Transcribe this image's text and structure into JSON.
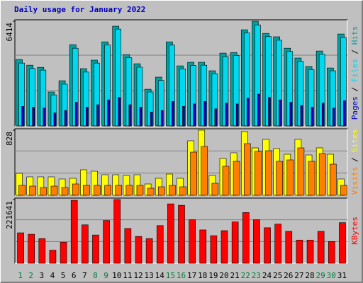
{
  "chart_data": [
    {
      "type": "bar",
      "title": "Daily usage for January 2022",
      "series": [
        {
          "name": "Hits",
          "color": "#00a0a0",
          "values": [
            4070,
            3720,
            3590,
            2080,
            2770,
            4980,
            3510,
            4030,
            5150,
            6110,
            4370,
            3810,
            2250,
            2990,
            5150,
            3680,
            3900,
            3900,
            3380,
            4460,
            4500,
            5890,
            6414,
            5670,
            5460,
            4760,
            4160,
            3640,
            4590,
            3550,
            5630
          ]
        },
        {
          "name": "Files",
          "color": "#00d8f0",
          "values": [
            3850,
            3520,
            3420,
            1900,
            2560,
            4760,
            3300,
            3850,
            4960,
            5930,
            4180,
            3600,
            2080,
            2790,
            4950,
            3500,
            3700,
            3720,
            3200,
            4250,
            4320,
            5700,
            6190,
            5480,
            5250,
            4560,
            3950,
            3450,
            4400,
            3380,
            5420
          ]
        },
        {
          "name": "Pages",
          "color": "#0000c0",
          "values": [
            1200,
            1150,
            1100,
            800,
            950,
            1450,
            1150,
            1300,
            1600,
            1750,
            1300,
            1150,
            850,
            950,
            1500,
            1200,
            1350,
            1500,
            1050,
            1400,
            1350,
            1700,
            1950,
            1750,
            1600,
            1450,
            1250,
            1150,
            1400,
            1100,
            1550
          ]
        }
      ],
      "ylim": [
        0,
        6414
      ],
      "yticks": [
        6414
      ]
    },
    {
      "type": "bar",
      "series": [
        {
          "name": "Sites",
          "color": "#ffff00",
          "values": [
            279,
            234,
            234,
            234,
            207,
            216,
            324,
            306,
            261,
            261,
            252,
            261,
            144,
            216,
            270,
            216,
            693,
            828,
            252,
            468,
            540,
            810,
            603,
            711,
            594,
            522,
            711,
            513,
            603,
            522,
            207
          ]
        },
        {
          "name": "Visits",
          "color": "#ff8000",
          "values": [
            126,
            117,
            99,
            117,
            99,
            144,
            126,
            126,
            126,
            126,
            126,
            126,
            90,
            108,
            126,
            108,
            549,
            621,
            153,
            369,
            432,
            657,
            558,
            567,
            432,
            450,
            603,
            432,
            531,
            396,
            126
          ]
        }
      ],
      "ylim": [
        0,
        828
      ],
      "yticks": [
        828
      ]
    },
    {
      "type": "bar",
      "categories": [
        "1",
        "2",
        "3",
        "4",
        "5",
        "6",
        "7",
        "8",
        "9",
        "10",
        "11",
        "12",
        "13",
        "14",
        "15",
        "16",
        "17",
        "18",
        "19",
        "20",
        "21",
        "22",
        "23",
        "24",
        "25",
        "26",
        "27",
        "28",
        "29",
        "30",
        "31"
      ],
      "weekend": [
        "1",
        "2",
        "8",
        "9",
        "15",
        "16",
        "22",
        "23",
        "29",
        "30"
      ],
      "weekend_color": "#008040",
      "series": [
        {
          "name": "KBytes",
          "color": "#ff0000",
          "values": [
            105781,
            100744,
            85632,
            45335,
            73040,
            219000,
            133486,
            98226,
            148597,
            221641,
            120893,
            93189,
            85632,
            130967,
            206525,
            201488,
            151116,
            115856,
            95707,
            113337,
            143560,
            176302,
            151116,
            123412,
            136004,
            110818,
            80595,
            80595,
            110818,
            75558,
            141041
          ]
        }
      ],
      "ylim": [
        0,
        221641
      ],
      "yticks": [
        221641
      ]
    }
  ]
}
